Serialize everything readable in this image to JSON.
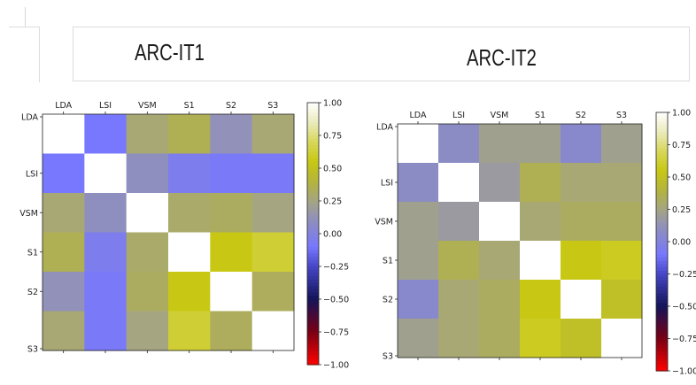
{
  "titles": [
    "ARC-IT1",
    "ARC-IT2"
  ],
  "chart_data": [
    {
      "type": "heatmap",
      "title": "ARC-IT1",
      "labels": [
        "LDA",
        "LSI",
        "VSM",
        "S1",
        "S2",
        "S3"
      ],
      "values": [
        [
          1.0,
          -0.1,
          0.28,
          0.35,
          0.12,
          0.28
        ],
        [
          -0.1,
          1.0,
          0.1,
          -0.05,
          -0.08,
          -0.08
        ],
        [
          0.28,
          0.1,
          1.0,
          0.3,
          0.32,
          0.25
        ],
        [
          0.35,
          -0.05,
          0.3,
          1.0,
          0.55,
          0.62
        ],
        [
          0.12,
          -0.08,
          0.32,
          0.55,
          1.0,
          0.33
        ],
        [
          0.28,
          -0.08,
          0.25,
          0.62,
          0.33,
          1.0
        ]
      ],
      "colorbar_ticks": [
        "1.00",
        "0.75",
        "0.50",
        "0.25",
        "0.00",
        "−0.25",
        "−0.50",
        "−0.75",
        "−1.00"
      ],
      "vmin": -1,
      "vmax": 1
    },
    {
      "type": "heatmap",
      "title": "ARC-IT2",
      "labels": [
        "LDA",
        "LSI",
        "VSM",
        "S1",
        "S2",
        "S3"
      ],
      "values": [
        [
          1.0,
          0.08,
          0.22,
          0.22,
          0.05,
          0.22
        ],
        [
          0.08,
          1.0,
          0.18,
          0.35,
          0.28,
          0.28
        ],
        [
          0.22,
          0.18,
          1.0,
          0.28,
          0.32,
          0.32
        ],
        [
          0.22,
          0.35,
          0.28,
          1.0,
          0.55,
          0.58
        ],
        [
          0.05,
          0.28,
          0.32,
          0.55,
          1.0,
          0.48
        ],
        [
          0.22,
          0.28,
          0.32,
          0.58,
          0.48,
          1.0
        ]
      ],
      "colorbar_ticks": [
        "1.00",
        "0.75",
        "0.50",
        "0.25",
        "0.00",
        "−0.25",
        "−0.50",
        "−0.75",
        "−1.00"
      ],
      "vmin": -1,
      "vmax": 1
    }
  ]
}
